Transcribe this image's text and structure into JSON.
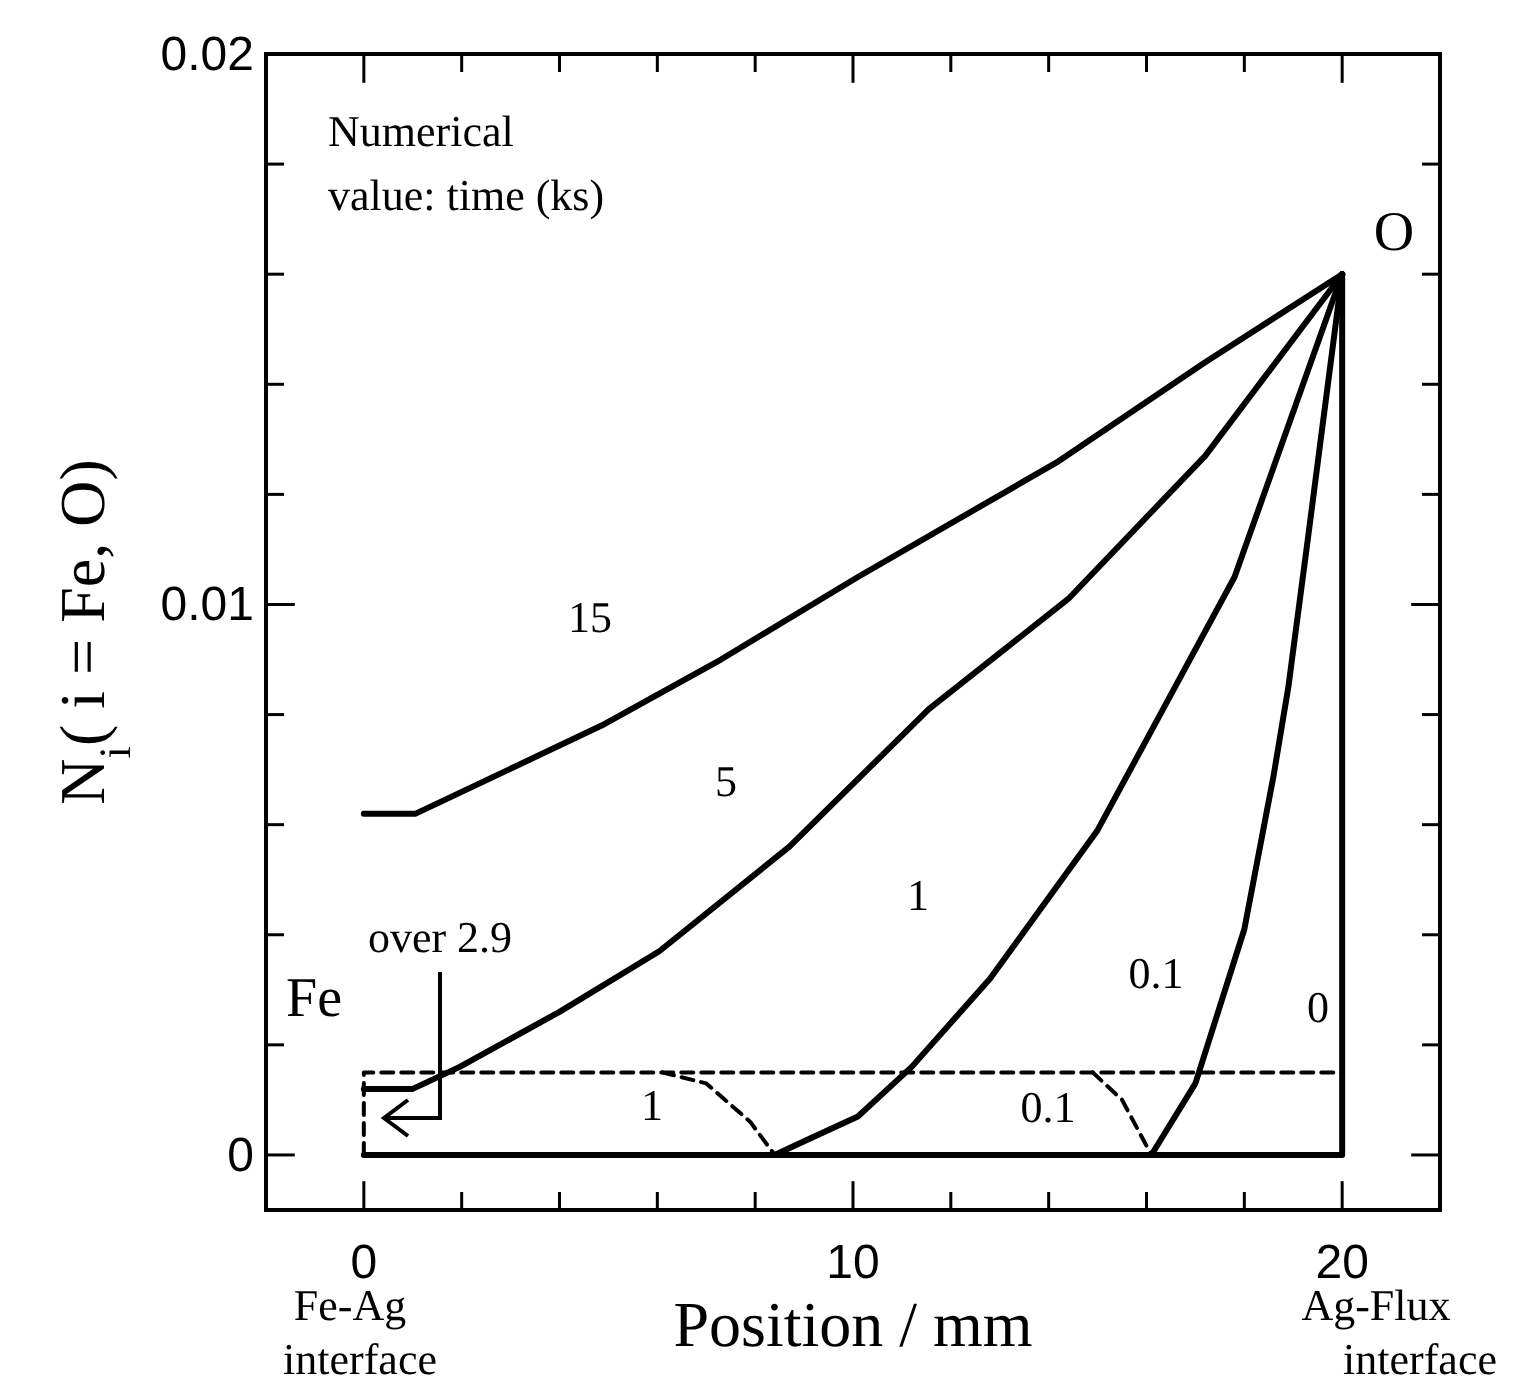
{
  "chart_data": {
    "type": "line",
    "xlabel": "Position / mm",
    "ylabel": "N$_{i}$( i = Fe, O)",
    "xlim": [
      -2,
      22
    ],
    "ylim": [
      -0.001,
      0.02
    ],
    "xticks": [
      0,
      {
        "value": 2,
        "label": null
      },
      {
        "value": 4,
        "label": null
      },
      {
        "value": 6,
        "label": null
      },
      {
        "value": 8,
        "label": null
      },
      10,
      {
        "value": 12,
        "label": null
      },
      {
        "value": 14,
        "label": null
      },
      {
        "value": 16,
        "label": null
      },
      {
        "value": 18,
        "label": null
      },
      20
    ],
    "yticks": [
      0,
      {
        "value": 0.002,
        "label": null
      },
      {
        "value": 0.004,
        "label": null
      },
      {
        "value": 0.006,
        "label": null
      },
      {
        "value": 0.008,
        "label": null
      },
      0.01,
      {
        "value": 0.012,
        "label": null
      },
      {
        "value": 0.014,
        "label": null
      },
      {
        "value": 0.016,
        "label": null
      },
      {
        "value": 0.018,
        "label": null
      },
      0.02
    ],
    "grid": false,
    "marker": "none",
    "annotations": [
      "Numerical value: time (ks)",
      "O",
      "Fe",
      "Fe-Ag interface",
      "Ag-Flux interface"
    ],
    "series": [
      {
        "name": "15",
        "color": "#000000",
        "line_style": "solid",
        "x": [
          0,
          1.06,
          4.86,
          7.3,
          10.1,
          14.2,
          17.2,
          20
        ],
        "values": [
          0.0062,
          0.0062,
          0.0078,
          0.009,
          0.0105,
          0.0126,
          0.0144,
          0.016
        ]
      },
      {
        "name": "5",
        "color": "#000000",
        "line_style": "solid",
        "x": [
          0,
          1.0,
          1.96,
          4.0,
          6.04,
          8.7,
          11.55,
          14.4,
          17.2,
          20
        ],
        "values": [
          0.0012,
          0.0012,
          0.0016,
          0.0026,
          0.0037,
          0.0056,
          0.0081,
          0.0101,
          0.0127,
          0.016
        ]
      },
      {
        "name": "1",
        "color": "#000000",
        "line_style": "solid",
        "x": [
          8.4,
          9.0,
          10.1,
          11.2,
          12.8,
          15.0,
          16.4,
          17.8,
          19.2,
          20
        ],
        "values": [
          0,
          0.00025,
          0.0007,
          0.0016,
          0.0032,
          0.0059,
          0.0082,
          0.0105,
          0.014,
          0.016
        ]
      },
      {
        "name": "0.1",
        "color": "#000000",
        "line_style": "solid",
        "x": [
          16.1,
          17.0,
          18.0,
          18.6,
          18.9,
          19.3,
          20
        ],
        "values": [
          0,
          0.0013,
          0.0041,
          0.0069,
          0.0085,
          0.0112,
          0.016
        ]
      },
      {
        "name": "0",
        "color": "#000000",
        "line_style": "solid",
        "x": [
          0,
          20,
          20
        ],
        "values": [
          0,
          0,
          0.016
        ]
      },
      {
        "name": "over 2.9",
        "color": "#000000",
        "line_style": "dashed",
        "x": [
          0,
          0,
          20
        ],
        "values": [
          0,
          0.0015,
          0.0015
        ]
      },
      {
        "name": "1",
        "color": "#000000",
        "line_style": "dashed",
        "x": [
          6.1,
          7.0,
          7.9,
          8.4
        ],
        "values": [
          0.0015,
          0.0013,
          0.0006,
          0
        ]
      },
      {
        "name": "0.1",
        "color": "#000000",
        "line_style": "dashed",
        "x": [
          14.9,
          15.5,
          16.1
        ],
        "values": [
          0.0015,
          0.001,
          0
        ]
      }
    ]
  }
}
